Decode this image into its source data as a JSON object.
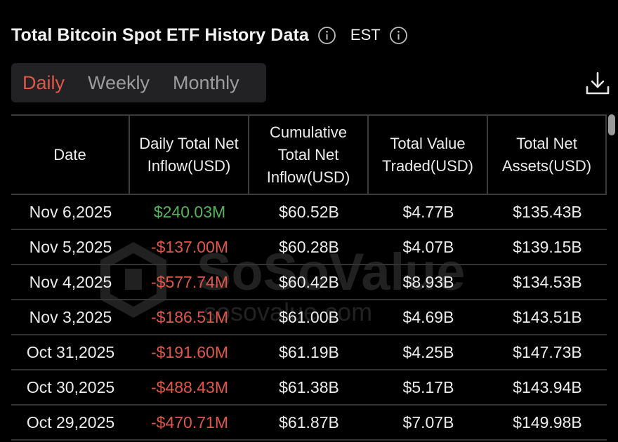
{
  "header": {
    "title": "Total Bitcoin Spot ETF History Data",
    "timezone": "EST"
  },
  "tabs": [
    "Daily",
    "Weekly",
    "Monthly"
  ],
  "active_tab": "Daily",
  "columns": [
    "Date",
    "Daily Total Net Inflow(USD)",
    "Cumulative Total Net Inflow(USD)",
    "Total Value Traded(USD)",
    "Total Net Assets(USD)"
  ],
  "rows": [
    {
      "date": "Nov 6,2025",
      "daily": "$240.03M",
      "cumulative": "$60.52B",
      "traded": "$4.77B",
      "assets": "$135.43B",
      "sign": "pos"
    },
    {
      "date": "Nov 5,2025",
      "daily": "-$137.00M",
      "cumulative": "$60.28B",
      "traded": "$4.07B",
      "assets": "$139.15B",
      "sign": "neg"
    },
    {
      "date": "Nov 4,2025",
      "daily": "-$577.74M",
      "cumulative": "$60.42B",
      "traded": "$8.93B",
      "assets": "$134.53B",
      "sign": "neg"
    },
    {
      "date": "Nov 3,2025",
      "daily": "-$186.51M",
      "cumulative": "$61.00B",
      "traded": "$4.69B",
      "assets": "$143.51B",
      "sign": "neg"
    },
    {
      "date": "Oct 31,2025",
      "daily": "-$191.60M",
      "cumulative": "$61.19B",
      "traded": "$4.25B",
      "assets": "$147.73B",
      "sign": "neg"
    },
    {
      "date": "Oct 30,2025",
      "daily": "-$488.43M",
      "cumulative": "$61.38B",
      "traded": "$5.17B",
      "assets": "$143.94B",
      "sign": "neg"
    },
    {
      "date": "Oct 29,2025",
      "daily": "-$470.71M",
      "cumulative": "$61.87B",
      "traded": "$7.07B",
      "assets": "$149.98B",
      "sign": "neg"
    }
  ],
  "watermark": {
    "brand": "SoSoValue",
    "url": "sosovalue.com"
  },
  "colors": {
    "positive": "#55b35a",
    "negative": "#e0574a",
    "background": "#000000",
    "tab_bg": "#222224"
  },
  "icons": {
    "info": "info-circle-icon",
    "download": "download-icon"
  }
}
